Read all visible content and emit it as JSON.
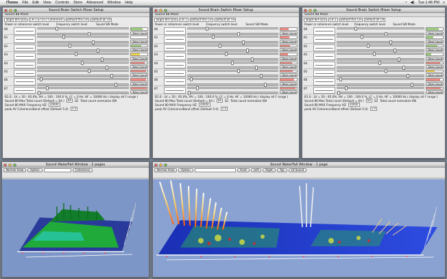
{
  "menubar": {
    "app": "iTunes",
    "menus": [
      "File",
      "Edit",
      "View",
      "Controls",
      "Store",
      "Advanced",
      "Window",
      "Help"
    ],
    "clock": "Tue 1:46 PM"
  },
  "mixers": [
    {
      "title": "Sound Brain Switch Mixer Setup",
      "subtitle": "Sound 88 Mixer",
      "target": "Target 8FA Dial",
      "channel": "CH 1 & CH 2 Coherence",
      "default1": "Default this CH",
      "default2": "Default all CH",
      "h1": "Power or coherence switch level",
      "h2": "Frequency switch level",
      "h3": "Sound SW Mode",
      "bands": [
        {
          "label": "B0",
          "fill": 0.72,
          "color": "#9bd07a",
          "mode": "Total Count"
        },
        {
          "label": "B1",
          "fill": 0.0,
          "color": "#9bd07a",
          "mode": "Total Count"
        },
        {
          "label": "B2",
          "fill": 0.62,
          "color": "#9bd07a",
          "mode": "Total Count"
        },
        {
          "label": "B3",
          "fill": 0.55,
          "color": "#f3d24a",
          "mode": "Total Count"
        },
        {
          "label": "B4",
          "fill": 0.83,
          "color": "#f08a80",
          "mode": "Total Count"
        },
        {
          "label": "B5",
          "fill": 0.92,
          "color": "#f08a80",
          "mode": "Total Count"
        },
        {
          "label": "B6",
          "fill": 0.9,
          "color": "#f08a80",
          "mode": "Total Count"
        },
        {
          "label": "B7",
          "fill": 0.95,
          "color": "#f08a80",
          "mode": "Total Count"
        }
      ],
      "summary": "B1.0 : LV = 50 ; 95.0%, HV = 100 ; 100.0 %, LF = 0 Hz, HF = 10000 Hz ( display all F range )",
      "max_label": "Sound 80 Max Total count (Default = 64 )",
      "max_value": "64",
      "normalize": "Total count normalize SW",
      "freq_label": "Sound 80 MAX Frequency HZ",
      "freq_value": "20000",
      "offset_label": "peak AV CoherenceBand offset (Default 5.0)",
      "offset_value": "5.0"
    },
    {
      "title": "Sound Brain Switch Mixer Setup",
      "subtitle": "Sound 88 Mixer",
      "target": "Target 8FA Dial",
      "channel": "CH 1",
      "default1": "Default this CH",
      "default2": "Default all CH",
      "h1": "Power or coherence switch level",
      "h2": "Frequency switch level",
      "h3": "Sound SW Mode",
      "bands": [
        {
          "label": "B0",
          "fill": 0.5,
          "color": "#f08a80",
          "mode": "Total Count"
        },
        {
          "label": "B1",
          "fill": 0.55,
          "color": "#f08a80",
          "mode": "Total Count"
        },
        {
          "label": "B2",
          "fill": 0.6,
          "color": "#f08a80",
          "mode": "Total Count"
        },
        {
          "label": "B3",
          "fill": 0.45,
          "color": "#f08a80",
          "mode": "Total Count"
        },
        {
          "label": "B4",
          "fill": 0.7,
          "color": "#f08a80",
          "mode": "Total Count"
        },
        {
          "label": "B5",
          "fill": 0.75,
          "color": "#f08a80",
          "mode": "Total Count"
        },
        {
          "label": "B6",
          "fill": 0.85,
          "color": "#f08a80",
          "mode": "Total Count"
        },
        {
          "label": "B7",
          "fill": 0.9,
          "color": "#f08a80",
          "mode": "Total Count"
        }
      ],
      "summary": "B1.0 : LV = 50 ; 95.0%, HV = 100 ; 100.0 %, LF = 0 Hz, HF = 10000 Hz ( display all F range )",
      "max_label": "Sound 80 Max Total count (Default = 64 )",
      "max_value": "64",
      "normalize": "Total count normalize SW",
      "freq_label": "Sound 80 MAX Frequency HZ",
      "freq_value": "20000",
      "offset_label": "peak AV CoherenceBand offset (Default 5.0)",
      "offset_value": "5.0"
    },
    {
      "title": "Sound Brain Switch Mixer Setup",
      "subtitle": "Sound 88 Mixer",
      "target": "Target 8FA Dial",
      "channel": "CH 2",
      "default1": "Default this CH",
      "default2": "Default all CH",
      "h1": "Power or coherence switch level",
      "h2": "Frequency switch level",
      "h3": "Sound SW Mode",
      "bands": [
        {
          "label": "B0",
          "fill": 0.75,
          "color": "#9bd07a",
          "mode": "Total Count"
        },
        {
          "label": "B1",
          "fill": 0.4,
          "color": "#9bd07a",
          "mode": "Total Count"
        },
        {
          "label": "B2",
          "fill": 0.65,
          "color": "#9bd07a",
          "mode": "Total Count"
        },
        {
          "label": "B3",
          "fill": 0.3,
          "color": "#9bd07a",
          "mode": "Total Count"
        },
        {
          "label": "B4",
          "fill": 0.85,
          "color": "#f08a80",
          "mode": "Total Count"
        },
        {
          "label": "B5",
          "fill": 0.5,
          "color": "#f3d24a",
          "mode": "Total Count"
        },
        {
          "label": "B6",
          "fill": 0.82,
          "color": "#f08a80",
          "mode": "Total Count"
        },
        {
          "label": "B7",
          "fill": 0.88,
          "color": "#f08a80",
          "mode": "Total Count"
        }
      ],
      "summary": "B1.0 : LV = 50 ; 95.0%, HV = 100 ; 100.0 %, LF = 0 Hz, HF = 10000 Hz ( display all F range )",
      "max_label": "Sound 80 Max Total count (Default = 64 )",
      "max_value": "64",
      "normalize": "Total count normalize SW",
      "freq_label": "Sound 80 MAX Frequency HZ",
      "freq_value": "20000",
      "offset_label": "peak AV CoherenceBand offset (Default 5.0)",
      "offset_value": "5.0"
    }
  ],
  "waterfalls": [
    {
      "title": "Sound WaterFall Window : 2 pages",
      "view_select": "Normal View",
      "option_btn": "Option",
      "mode_select": "Coherence",
      "buttons": [],
      "background": "#7d96c8"
    },
    {
      "title": "Sound WaterFall Window : 1 page",
      "view_select": "Normal View",
      "option_btn": "Option",
      "mode_select": "Lit Sound",
      "buttons": [
        "Front",
        "Left",
        "Right",
        "Top"
      ],
      "background": "#8aa2d2"
    }
  ]
}
